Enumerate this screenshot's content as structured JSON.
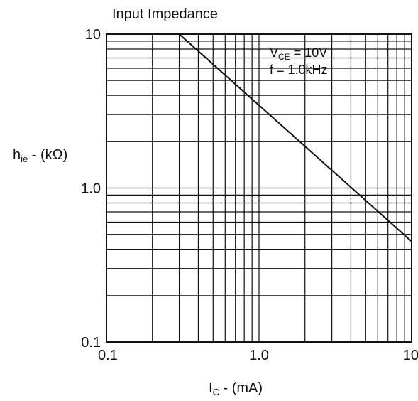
{
  "chart_data": {
    "type": "line",
    "title": "Input Impedance",
    "xlabel": {
      "main": "I",
      "sub": "C",
      "rest": " - (mA)"
    },
    "ylabel": {
      "main": "h",
      "sub": "ie",
      "rest": " - (kΩ)"
    },
    "xscale": "log",
    "yscale": "log",
    "xlim": [
      0.1,
      10
    ],
    "ylim": [
      0.1,
      10
    ],
    "grid": true,
    "x_ticks": [
      {
        "value": 0.1,
        "label": "0.1"
      },
      {
        "value": 1,
        "label": "1.0"
      },
      {
        "value": 10,
        "label": "10"
      }
    ],
    "y_ticks": [
      {
        "value": 0.1,
        "label": "0.1"
      },
      {
        "value": 1,
        "label": "1.0"
      },
      {
        "value": 10,
        "label": "10"
      }
    ],
    "series": [
      {
        "x": [
          0.3,
          10
        ],
        "y": [
          10,
          0.45
        ],
        "color": "#111111"
      }
    ],
    "annotations": [
      {
        "main": "V",
        "sub": "CE",
        "rest": " = 10V"
      },
      {
        "main": "f = 1.0kHz",
        "sub": "",
        "rest": ""
      }
    ]
  }
}
